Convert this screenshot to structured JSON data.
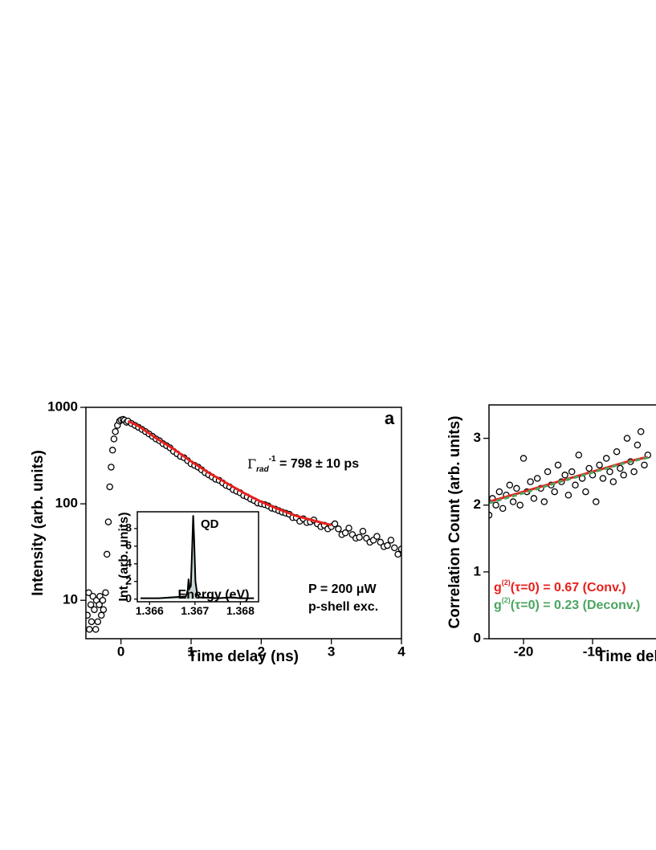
{
  "chart_data": [
    {
      "type": "scatter",
      "panel_label": "a",
      "xlabel": "Time delay (ns)",
      "ylabel": "Intensity (arb. units)",
      "xlim": [
        -0.5,
        4
      ],
      "ylim": [
        4,
        1000
      ],
      "yscale": "log",
      "xticks": [
        0,
        1,
        2,
        3,
        4
      ],
      "yticks": [
        10,
        100,
        1000
      ],
      "series": [
        {
          "type": "scatter",
          "color": "#000000",
          "x": [
            -0.48,
            -0.46,
            -0.45,
            -0.43,
            -0.42,
            -0.4,
            -0.38,
            -0.36,
            -0.35,
            -0.33,
            -0.31,
            -0.3,
            -0.28,
            -0.26,
            -0.25,
            -0.22,
            -0.2,
            -0.18,
            -0.16,
            -0.14,
            -0.12,
            -0.1,
            -0.08,
            -0.05,
            -0.02,
            0,
            0.03,
            0.05,
            0.08,
            0.1,
            0.15,
            0.2,
            0.25,
            0.3,
            0.35,
            0.4,
            0.45,
            0.5,
            0.55,
            0.6,
            0.65,
            0.7,
            0.75,
            0.8,
            0.85,
            0.9,
            0.95,
            1.0,
            1.05,
            1.1,
            1.15,
            1.2,
            1.25,
            1.3,
            1.35,
            1.4,
            1.45,
            1.5,
            1.55,
            1.6,
            1.65,
            1.7,
            1.75,
            1.8,
            1.85,
            1.9,
            1.95,
            2.0,
            2.05,
            2.1,
            2.15,
            2.2,
            2.25,
            2.3,
            2.35,
            2.4,
            2.45,
            2.5,
            2.55,
            2.6,
            2.65,
            2.7,
            2.75,
            2.8,
            2.85,
            2.9,
            2.95,
            3.0,
            3.05,
            3.1,
            3.15,
            3.2,
            3.25,
            3.3,
            3.35,
            3.4,
            3.45,
            3.5,
            3.55,
            3.6,
            3.65,
            3.7,
            3.75,
            3.8,
            3.85,
            3.9,
            3.95,
            4.0
          ],
          "values": [
            7,
            12,
            5,
            9,
            6,
            11,
            8,
            5,
            10,
            6,
            9,
            11,
            7,
            10,
            8,
            12,
            30,
            65,
            150,
            240,
            360,
            470,
            560,
            650,
            720,
            740,
            750,
            735,
            700,
            720,
            680,
            650,
            620,
            590,
            560,
            530,
            500,
            470,
            450,
            420,
            400,
            380,
            350,
            330,
            310,
            300,
            280,
            260,
            250,
            240,
            225,
            210,
            200,
            190,
            180,
            175,
            165,
            155,
            150,
            140,
            135,
            130,
            122,
            118,
            112,
            108,
            102,
            100,
            98,
            95,
            90,
            88,
            85,
            82,
            80,
            78,
            72,
            72,
            66,
            70,
            64,
            65,
            68,
            62,
            58,
            60,
            55,
            58,
            62,
            55,
            48,
            50,
            56,
            48,
            44,
            45,
            52,
            44,
            40,
            42,
            46,
            40,
            36,
            37,
            42,
            35,
            30,
            34
          ]
        },
        {
          "type": "line",
          "color": "#e8201c",
          "x": [
            0.1,
            0.25,
            0.5,
            0.75,
            1,
            1.25,
            1.5,
            1.75,
            2,
            2.25,
            2.5,
            2.75,
            3
          ],
          "values": [
            720,
            640,
            480,
            370,
            275,
            210,
            165,
            130,
            105,
            88,
            75,
            67,
            60
          ]
        }
      ],
      "annotations": [
        {
          "parts": [
            "Γ",
            "rad",
            "-1",
            " = 798 ± 10 ps"
          ]
        },
        {
          "parts": [
            "P = 200 μW"
          ]
        },
        {
          "parts": [
            "p-shell exc."
          ]
        }
      ]
    },
    {
      "type": "area",
      "xlabel": "Energy (eV)",
      "ylabel": "Int. (arb. units)",
      "color": "#c9d6d6",
      "xlim": [
        1.36573,
        1.3684
      ],
      "ylim": [
        -0.3,
        9.9
      ],
      "xticks": [
        1.366,
        1.367,
        1.368
      ],
      "yticks": [
        0,
        2,
        4,
        6,
        8
      ],
      "x": [
        1.3658,
        1.3662,
        1.3665,
        1.3668,
        1.36684,
        1.36686,
        1.36688,
        1.36691,
        1.36694,
        1.36696,
        1.36698,
        1.36701,
        1.36705,
        1.3671,
        1.3675,
        1.3678,
        1.368,
        1.3683
      ],
      "values": [
        0.1,
        0.1,
        0.2,
        0.3,
        1.0,
        2.3,
        1.2,
        1.5,
        6,
        9.5,
        7,
        2,
        0.5,
        0.2,
        0.1,
        0.2,
        0.1,
        0.1
      ],
      "annotations": [
        {
          "parts": [
            "QD"
          ]
        }
      ]
    },
    {
      "type": "scatter",
      "xlabel": "Time delay (ns)",
      "ylabel": "Correlation Count (arb. units)",
      "xlim": [
        -25,
        25
      ],
      "ylim": [
        0,
        3.5
      ],
      "xticks": [
        -20,
        -10
      ],
      "yticks": [
        0,
        1,
        2,
        3
      ],
      "series": [
        {
          "type": "scatter",
          "color": "#000000",
          "x": [
            -25,
            -24.5,
            -24,
            -23.5,
            -23,
            -22.5,
            -22,
            -21.5,
            -21,
            -20.5,
            -20,
            -19.5,
            -19,
            -18.5,
            -18,
            -17.5,
            -17,
            -16.5,
            -16,
            -15.5,
            -15,
            -14.5,
            -14,
            -13.5,
            -13,
            -12.5,
            -12,
            -11.5,
            -11,
            -10.5,
            -10,
            -9.5,
            -9,
            -8.5,
            -8,
            -7.5,
            -7,
            -6.5,
            -6,
            -5.5,
            -5,
            -4.5,
            -4,
            -3.5,
            -3,
            -2.5,
            -2
          ],
          "values": [
            1.85,
            2.1,
            2.0,
            2.2,
            1.95,
            2.15,
            2.3,
            2.05,
            2.25,
            2.0,
            2.7,
            2.2,
            2.35,
            2.1,
            2.4,
            2.25,
            2.05,
            2.5,
            2.3,
            2.2,
            2.6,
            2.35,
            2.45,
            2.15,
            2.5,
            2.3,
            2.75,
            2.4,
            2.2,
            2.55,
            2.45,
            2.05,
            2.6,
            2.4,
            2.7,
            2.5,
            2.35,
            2.8,
            2.55,
            2.45,
            3.0,
            2.65,
            2.5,
            2.9,
            3.1,
            2.6,
            2.75
          ]
        },
        {
          "type": "line",
          "color": "#e8201c",
          "x": [
            -25,
            -20,
            -15,
            -10,
            -5,
            -2
          ],
          "values": [
            2.05,
            2.2,
            2.35,
            2.5,
            2.65,
            2.72
          ]
        },
        {
          "type": "line",
          "color": "#4aa55f",
          "dash": true,
          "x": [
            -25,
            -20,
            -15,
            -10,
            -5,
            -2
          ],
          "values": [
            2.03,
            2.18,
            2.34,
            2.49,
            2.64,
            2.71
          ]
        }
      ],
      "annotations": [
        {
          "parts": [
            "g",
            "(2)",
            "(τ=0) = 0.67 (Conv.)"
          ],
          "color": "#e8201c"
        },
        {
          "parts": [
            "g",
            "(2)",
            "(τ=0) = 0.23 (Deconv.)"
          ],
          "color": "#4aa55f"
        }
      ]
    }
  ]
}
